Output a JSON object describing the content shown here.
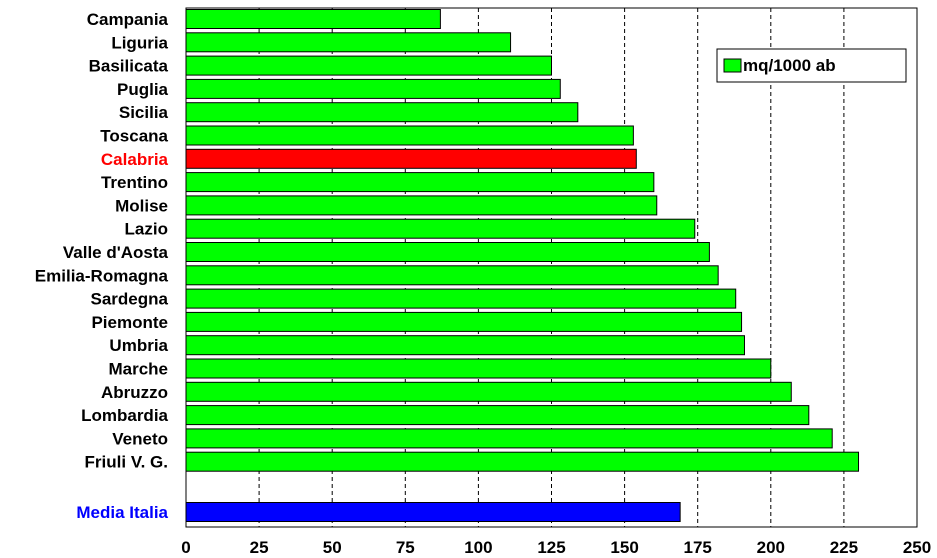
{
  "chart_data": {
    "type": "bar",
    "orientation": "horizontal",
    "categories": [
      "Campania",
      "Liguria",
      "Basilicata",
      "Puglia",
      "Sicilia",
      "Toscana",
      "Calabria",
      "Trentino",
      "Molise",
      "Lazio",
      "Valle d'Aosta",
      "Emilia-Romagna",
      "Sardegna",
      "Piemonte",
      "Umbria",
      "Marche",
      "Abruzzo",
      "Lombardia",
      "Veneto",
      "Friuli V. G."
    ],
    "series": [
      {
        "name": "mq/1000 ab",
        "values": [
          87,
          111,
          125,
          128,
          134,
          153,
          154,
          160,
          161,
          174,
          179,
          182,
          188,
          190,
          191,
          200,
          207,
          213,
          221,
          230
        ]
      }
    ],
    "extra_bar": {
      "category": "Media Italia",
      "value": 169
    },
    "highlight_category": "Calabria",
    "colors": {
      "bar": "#00ff00",
      "highlight": "#ff0000",
      "average": "#0000ff",
      "label_highlight": "#ff0000",
      "label_average": "#0000ff"
    },
    "xlim": [
      0,
      250
    ],
    "xticks": [
      0,
      25,
      50,
      75,
      100,
      125,
      150,
      175,
      200,
      225,
      250
    ],
    "grid": "vertical dashed",
    "legend_position": "top-right"
  }
}
